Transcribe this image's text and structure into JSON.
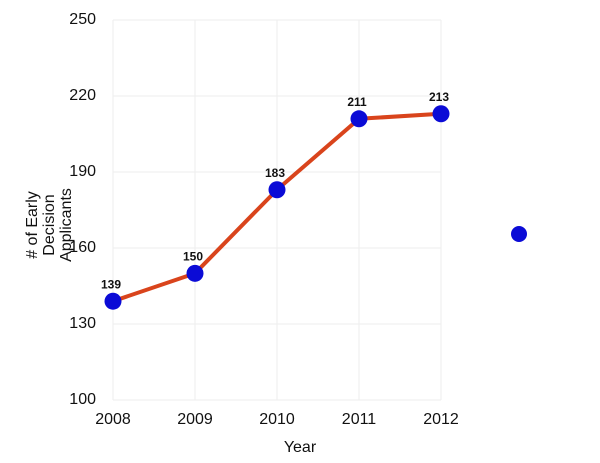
{
  "chart_data": {
    "type": "line",
    "x_label": "Year",
    "y_label": "# of Early Decision Applicants",
    "x": [
      2008,
      2009,
      2010,
      2011,
      2012
    ],
    "series": [
      {
        "values": [
          139,
          150,
          183,
          211,
          213
        ],
        "color": "#d9441c",
        "marker_color": "#0b0bd6",
        "label_color": "#2e7d12"
      }
    ],
    "xlim": [
      2008,
      2012
    ],
    "xticks": [
      2008,
      2009,
      2010,
      2011,
      2012
    ],
    "ylim": [
      100,
      250
    ],
    "yticks": [
      100,
      130,
      160,
      190,
      220,
      250
    ],
    "grid": true
  }
}
